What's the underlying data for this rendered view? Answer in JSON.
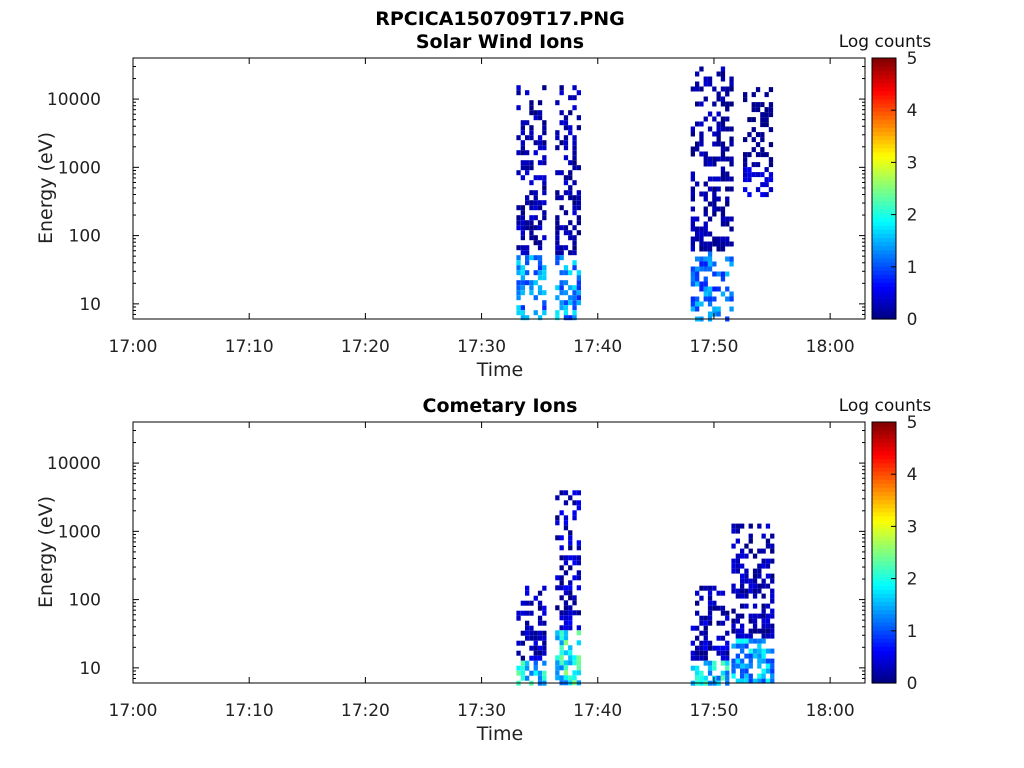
{
  "figure": {
    "title": "RPCICA150709T17.PNG"
  },
  "chart_data": [
    {
      "type": "heatmap",
      "title": "Solar Wind Ions",
      "xlabel": "Time",
      "ylabel": "Energy (eV)",
      "x_scale": "time",
      "xlim": [
        "17:00",
        "18:03"
      ],
      "xticks": [
        "17:00",
        "17:10",
        "17:20",
        "17:30",
        "17:40",
        "17:50",
        "18:00"
      ],
      "y_scale": "log",
      "ylim": [
        6,
        40000
      ],
      "yticks": [
        "10",
        "100",
        "1000",
        "10000"
      ],
      "colorbar": {
        "label": "Log counts",
        "range": [
          0,
          5
        ],
        "ticks": [
          "0",
          "1",
          "2",
          "3",
          "4",
          "5"
        ],
        "colormap": "jet"
      },
      "grid": false,
      "clusters": [
        {
          "time_start": "17:33:00",
          "time_end": "17:35:30",
          "energy_min_eV": 6,
          "energy_max_eV": 16000,
          "peak_log_counts": 1.8
        },
        {
          "time_start": "17:36:20",
          "time_end": "17:38:30",
          "energy_min_eV": 6,
          "energy_max_eV": 16000,
          "peak_log_counts": 1.8
        },
        {
          "time_start": "17:48:00",
          "time_end": "17:51:30",
          "energy_min_eV": 6,
          "energy_max_eV": 30000,
          "peak_log_counts": 1.6
        },
        {
          "time_start": "17:52:30",
          "time_end": "17:55:00",
          "energy_min_eV": 400,
          "energy_max_eV": 15000,
          "peak_log_counts": 0.6
        }
      ]
    },
    {
      "type": "heatmap",
      "title": "Cometary Ions",
      "xlabel": "Time",
      "ylabel": "Energy (eV)",
      "x_scale": "time",
      "xlim": [
        "17:00",
        "18:03"
      ],
      "xticks": [
        "17:00",
        "17:10",
        "17:20",
        "17:30",
        "17:40",
        "17:50",
        "18:00"
      ],
      "y_scale": "log",
      "ylim": [
        6,
        40000
      ],
      "yticks": [
        "10",
        "100",
        "1000",
        "10000"
      ],
      "colorbar": {
        "label": "Log counts",
        "range": [
          0,
          5
        ],
        "ticks": [
          "0",
          "1",
          "2",
          "3",
          "4",
          "5"
        ],
        "colormap": "jet"
      },
      "grid": false,
      "clusters": [
        {
          "time_start": "17:33:00",
          "time_end": "17:35:30",
          "energy_min_eV": 6,
          "energy_max_eV": 160,
          "peak_log_counts": 2.4
        },
        {
          "time_start": "17:36:20",
          "time_end": "17:38:30",
          "energy_min_eV": 6,
          "energy_max_eV": 4000,
          "peak_log_counts": 2.6
        },
        {
          "time_start": "17:48:00",
          "time_end": "17:51:00",
          "energy_min_eV": 6,
          "energy_max_eV": 160,
          "peak_log_counts": 2.4
        },
        {
          "time_start": "17:51:30",
          "time_end": "17:55:00",
          "energy_min_eV": 6,
          "energy_max_eV": 1300,
          "peak_log_counts": 2.0
        }
      ]
    }
  ]
}
